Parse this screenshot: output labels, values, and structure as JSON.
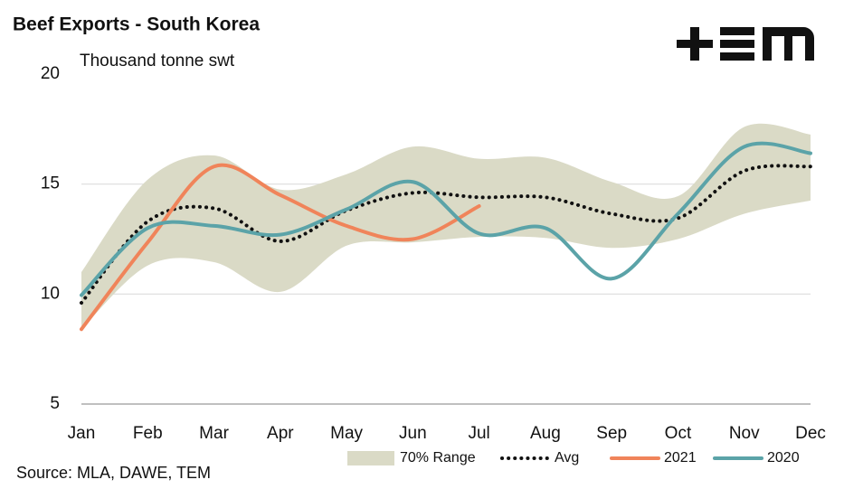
{
  "chart_data": {
    "type": "line",
    "title": "Beef Exports - South Korea",
    "y_label": "Thousand tonne swt",
    "source": "Source: MLA, DAWE, TEM",
    "categories": [
      "Jan",
      "Feb",
      "Mar",
      "Apr",
      "May",
      "Jun",
      "Jul",
      "Aug",
      "Sep",
      "Oct",
      "Nov",
      "Dec"
    ],
    "ylim": [
      5,
      20
    ],
    "yticks": [
      5,
      10,
      15,
      20
    ],
    "grid": true,
    "legend": "bottom-right",
    "series": [
      {
        "name": "70% Range",
        "color": "#dadac6",
        "kind": "range",
        "upper": [
          11.0,
          15.2,
          16.3,
          14.75,
          15.45,
          16.7,
          16.15,
          16.2,
          15.1,
          14.45,
          17.6,
          17.25
        ],
        "lower": [
          8.4,
          11.3,
          11.45,
          10.1,
          12.2,
          12.35,
          12.6,
          12.55,
          12.1,
          12.5,
          13.65,
          14.25
        ]
      },
      {
        "name": "Avg",
        "color": "#111111",
        "kind": "dotted",
        "values": [
          9.6,
          13.3,
          13.9,
          12.4,
          13.8,
          14.6,
          14.4,
          14.4,
          13.65,
          13.45,
          15.6,
          15.8
        ]
      },
      {
        "name": "2021",
        "color": "#f0845a",
        "kind": "solid",
        "values": [
          8.4,
          12.35,
          15.8,
          14.5,
          13.1,
          12.5,
          14.0,
          null,
          null,
          null,
          null,
          null
        ]
      },
      {
        "name": "2020",
        "color": "#5ba3a8",
        "kind": "solid",
        "values": [
          9.95,
          13.0,
          13.1,
          12.7,
          13.85,
          15.1,
          12.75,
          13.0,
          10.7,
          13.65,
          16.7,
          16.4
        ]
      }
    ]
  }
}
